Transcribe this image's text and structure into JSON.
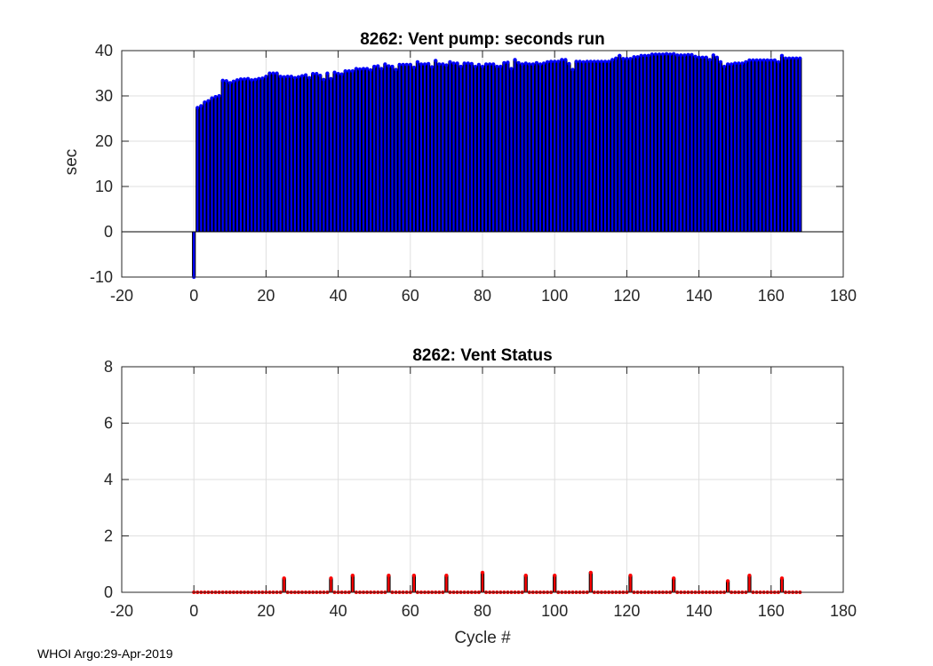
{
  "chart_data": [
    {
      "type": "bar",
      "title": "8262: Vent pump: seconds run",
      "xlabel": "",
      "ylabel": "sec",
      "xlim": [
        -20,
        180
      ],
      "ylim": [
        -10,
        40
      ],
      "xticks": [
        "-20",
        "0",
        "20",
        "40",
        "60",
        "80",
        "100",
        "120",
        "140",
        "160",
        "180"
      ],
      "yticks": [
        "-10",
        "0",
        "10",
        "20",
        "30",
        "40"
      ],
      "grid": true,
      "x_start": 0,
      "values": [
        -10,
        27.4,
        27.8,
        28.6,
        28.9,
        29.5,
        29.8,
        30.0,
        33.4,
        33.3,
        32.9,
        33.2,
        33.5,
        33.7,
        33.7,
        33.8,
        33.5,
        33.6,
        33.8,
        33.9,
        34.3,
        35.0,
        35.0,
        35.0,
        34.3,
        34.2,
        34.3,
        34.3,
        34.0,
        34.2,
        34.4,
        34.6,
        34.0,
        34.9,
        34.9,
        34.5,
        33.6,
        35.0,
        33.8,
        35.2,
        34.9,
        34.8,
        35.5,
        35.5,
        35.5,
        36.0,
        35.9,
        36.0,
        36.0,
        35.7,
        36.5,
        36.6,
        36.0,
        37.0,
        36.6,
        36.5,
        35.8,
        36.9,
        36.9,
        36.9,
        36.9,
        36.3,
        37.5,
        37.0,
        37.0,
        37.1,
        36.4,
        37.8,
        37.0,
        37.0,
        36.8,
        37.5,
        37.2,
        37.2,
        36.5,
        37.2,
        37.2,
        37.1,
        36.5,
        36.9,
        36.5,
        37.0,
        37.0,
        37.0,
        36.5,
        36.5,
        37.3,
        37.4,
        36.0,
        38.0,
        37.3,
        37.0,
        37.2,
        37.0,
        37.0,
        37.3,
        37.0,
        37.2,
        37.5,
        37.6,
        37.6,
        37.6,
        38.0,
        38.0,
        37.1,
        35.8,
        37.6,
        37.6,
        37.5,
        37.6,
        37.6,
        37.6,
        37.6,
        37.6,
        37.6,
        37.6,
        38.0,
        38.3,
        38.9,
        38.2,
        38.2,
        38.2,
        38.6,
        38.6,
        38.9,
        38.9,
        38.9,
        39.2,
        39.2,
        39.2,
        39.2,
        39.3,
        39.2,
        39.3,
        39.0,
        39.0,
        39.0,
        39.1,
        39.1,
        38.7,
        38.5,
        38.5,
        38.5,
        38.0,
        39.0,
        38.5,
        37.5,
        36.5,
        37.0,
        37.0,
        37.2,
        37.2,
        37.2,
        37.5,
        37.9,
        37.9,
        37.9,
        37.9,
        37.9,
        37.9,
        37.9,
        37.9,
        37.5,
        38.9,
        38.3,
        38.3,
        38.3,
        38.3,
        38.3
      ],
      "bar_color": "#0000ff",
      "edge_color": "#000000"
    },
    {
      "type": "bar",
      "title": "8262: Vent Status",
      "xlabel": "Cycle #",
      "ylabel": "",
      "xlim": [
        -20,
        180
      ],
      "ylim": [
        0,
        8
      ],
      "xticks": [
        "-20",
        "0",
        "20",
        "40",
        "60",
        "80",
        "100",
        "120",
        "140",
        "160",
        "180"
      ],
      "yticks": [
        "0",
        "2",
        "4",
        "6",
        "8"
      ],
      "grid": true,
      "x_start": 0,
      "n_points": 169,
      "nonzero": [
        [
          25,
          0.5
        ],
        [
          38,
          0.5
        ],
        [
          44,
          0.6
        ],
        [
          54,
          0.6
        ],
        [
          61,
          0.6
        ],
        [
          70,
          0.6
        ],
        [
          80,
          0.7
        ],
        [
          92,
          0.6
        ],
        [
          100,
          0.6
        ],
        [
          110,
          0.7
        ],
        [
          121,
          0.6
        ],
        [
          133,
          0.5
        ],
        [
          148,
          0.4
        ],
        [
          154,
          0.6
        ],
        [
          163,
          0.5
        ]
      ],
      "bar_color": "#ff0000",
      "edge_color": "#000000"
    }
  ],
  "footer": "WHOI Argo:29-Apr-2019"
}
